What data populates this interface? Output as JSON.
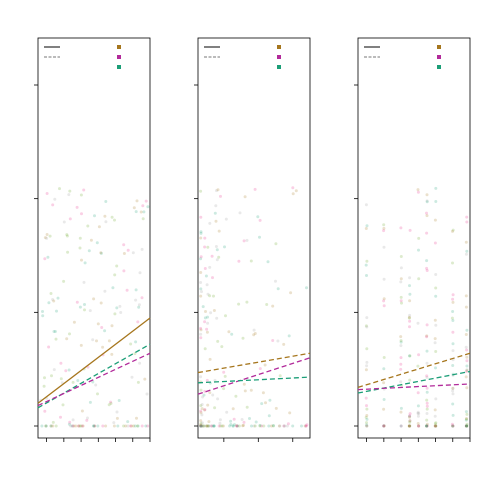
{
  "chart_data": [
    {
      "type": "scatter",
      "title": "",
      "xlabel": "",
      "ylabel": "",
      "xlim": [
        0,
        6.5
      ],
      "ylim": [
        0,
        30
      ],
      "xticks": [
        0.5,
        1.5,
        2.5,
        3.5,
        4.5,
        5.5,
        6.5
      ],
      "yticks": [
        0,
        10,
        20,
        30
      ],
      "legend_placement": "top",
      "point_seed": 11,
      "point_count": 190,
      "x_spread": "uniform",
      "lines": [
        {
          "style": "solid",
          "color": "#a6761d",
          "x": [
            0,
            6.5
          ],
          "y": [
            2.0,
            9.5
          ]
        },
        {
          "style": "dashed",
          "color": "#1b9e77",
          "x": [
            0,
            6.5
          ],
          "y": [
            1.6,
            7.2
          ]
        },
        {
          "style": "dashed",
          "color": "#b22a9a",
          "x": [
            0,
            6.5
          ],
          "y": [
            1.8,
            6.4
          ]
        }
      ]
    },
    {
      "type": "scatter",
      "title": "",
      "xlabel": "",
      "ylabel": "",
      "xlim": [
        0,
        6.5
      ],
      "ylim": [
        0,
        30
      ],
      "xticks": [
        1.5,
        3.5,
        5.5
      ],
      "yticks": [
        0,
        10,
        20,
        30
      ],
      "legend_placement": "top",
      "point_seed": 23,
      "point_count": 210,
      "x_spread": "left-skew",
      "lines": [
        {
          "style": "dashed",
          "color": "#a6761d",
          "x": [
            0,
            6.5
          ],
          "y": [
            4.7,
            6.4
          ]
        },
        {
          "style": "dashed",
          "color": "#b22a9a",
          "x": [
            0,
            6.5
          ],
          "y": [
            2.8,
            6.0
          ]
        },
        {
          "style": "dashed",
          "color": "#1b9e77",
          "x": [
            0,
            6.5
          ],
          "y": [
            3.8,
            4.3
          ]
        }
      ]
    },
    {
      "type": "scatter",
      "title": "",
      "xlabel": "",
      "ylabel": "",
      "xlim": [
        0,
        6.5
      ],
      "ylim": [
        0,
        30
      ],
      "xticks": [
        0.5,
        1.5,
        2.5,
        3.5,
        4.5,
        5.5,
        6.5
      ],
      "yticks": [
        0,
        10,
        20,
        30
      ],
      "legend_placement": "top",
      "point_seed": 37,
      "point_count": 230,
      "x_spread": "columns",
      "lines": [
        {
          "style": "dashed",
          "color": "#a6761d",
          "x": [
            0,
            6.5
          ],
          "y": [
            3.4,
            6.4
          ]
        },
        {
          "style": "dashed",
          "color": "#1b9e77",
          "x": [
            0,
            6.5
          ],
          "y": [
            2.9,
            4.8
          ]
        },
        {
          "style": "dashed",
          "color": "#b22a9a",
          "x": [
            0,
            6.5
          ],
          "y": [
            3.2,
            3.7
          ]
        }
      ]
    }
  ],
  "legend": {
    "line_items": [
      {
        "style": "solid",
        "color": "#000000"
      },
      {
        "style": "dashed",
        "color": "#777777"
      }
    ],
    "color_items": [
      {
        "color": "#a6761d"
      },
      {
        "color": "#b22a9a"
      },
      {
        "color": "#1b9e77"
      }
    ]
  },
  "point_colors": [
    "#e7298a",
    "#66a61e",
    "#1b9e77",
    "#a6761d",
    "#999999"
  ]
}
